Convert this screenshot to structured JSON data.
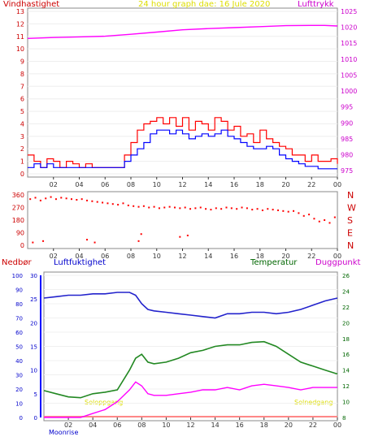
{
  "header": {
    "left_label": "Vindhastighet",
    "center_label": "24 hour graph dae:  16 Jule 2020",
    "right_label": "Lufttrykk"
  },
  "colors": {
    "wind": "#ff0000",
    "wind_avg": "#0000ff",
    "pressure": "#ff00ff",
    "direction": "#ff0000",
    "humidity": "#2222cc",
    "temperature": "#228822",
    "dewpoint": "#ff00ff",
    "rain": "#0000ff",
    "sun": "#ffff00",
    "axis_left": "#cc0000",
    "axis_right_top": "#cc00cc",
    "axis_green": "#006600"
  },
  "chart_data": [
    {
      "type": "line",
      "name": "wind-pressure-chart",
      "title": "24 hour graph dae:  16 Jule 2020",
      "left_axis_label": "Vindhastighet",
      "right_axis_label": "Lufttrykk",
      "x_ticks": [
        "02",
        "04",
        "06",
        "08",
        "10",
        "12",
        "14",
        "16",
        "18",
        "20",
        "22",
        "00"
      ],
      "left_ticks": [
        "0",
        "1",
        "2",
        "3",
        "4",
        "5",
        "6",
        "7",
        "8",
        "9",
        "10",
        "11",
        "12",
        "13"
      ],
      "right_ticks": [
        "975",
        "980",
        "985",
        "990",
        "995",
        "1000",
        "1005",
        "1010",
        "1015",
        "1020",
        "1025"
      ],
      "ylim_left": [
        0,
        13
      ],
      "ylim_right": [
        974,
        1025
      ],
      "series": [
        {
          "axis": "left",
          "x": [
            0.0,
            0.5,
            1.0,
            1.5,
            2.0,
            2.5,
            3.0,
            3.5,
            4.0,
            4.5,
            5.0,
            5.5,
            6.0,
            6.5,
            7.0,
            7.5,
            8.0,
            8.5,
            9.0,
            9.5,
            10.0,
            10.5,
            11.0,
            11.5,
            12.0,
            12.5,
            13.0,
            13.5,
            14.0,
            14.5,
            15.0,
            15.5,
            16.0,
            16.5,
            17.0,
            17.5,
            18.0,
            18.5,
            19.0,
            19.5,
            20.0,
            20.5,
            21.0,
            21.5,
            22.0,
            22.5,
            23.0,
            23.5,
            24.0
          ],
          "values": [
            0.5,
            0.8,
            0.5,
            0.8,
            0.5,
            0.5,
            0.5,
            0.5,
            0.5,
            0.5,
            0.5,
            0.5,
            0.5,
            0.5,
            0.5,
            1.0,
            1.5,
            2.0,
            2.5,
            3.2,
            3.5,
            3.5,
            3.2,
            3.5,
            3.2,
            2.8,
            3.0,
            3.2,
            3.0,
            3.2,
            3.5,
            3.0,
            2.8,
            2.5,
            2.2,
            2.0,
            2.0,
            2.2,
            2.0,
            1.5,
            1.2,
            1.0,
            0.8,
            0.6,
            0.6,
            0.4,
            0.4,
            0.4,
            0.4
          ]
        },
        {
          "axis": "left",
          "x": [
            0.0,
            0.5,
            1.0,
            1.5,
            2.0,
            2.5,
            3.0,
            3.5,
            4.0,
            4.5,
            5.0,
            5.5,
            6.0,
            6.5,
            7.0,
            7.5,
            8.0,
            8.5,
            9.0,
            9.5,
            10.0,
            10.5,
            11.0,
            11.5,
            12.0,
            12.5,
            13.0,
            13.5,
            14.0,
            14.5,
            15.0,
            15.5,
            16.0,
            16.5,
            17.0,
            17.5,
            18.0,
            18.5,
            19.0,
            19.5,
            20.0,
            20.5,
            21.0,
            21.5,
            22.0,
            22.5,
            23.0,
            23.5,
            24.0
          ],
          "values": [
            1.5,
            1.0,
            0.5,
            1.2,
            1.0,
            0.5,
            1.0,
            0.8,
            0.5,
            0.8,
            0.5,
            0.5,
            0.5,
            0.5,
            0.5,
            1.5,
            2.5,
            3.5,
            4.0,
            4.2,
            4.5,
            4.0,
            4.5,
            3.8,
            4.5,
            3.5,
            4.2,
            4.0,
            3.5,
            4.5,
            4.2,
            3.5,
            3.8,
            3.0,
            3.2,
            2.5,
            3.5,
            2.8,
            2.5,
            2.2,
            2.0,
            1.5,
            1.5,
            1.0,
            1.5,
            1.0,
            1.0,
            1.2,
            0.8
          ]
        },
        {
          "axis": "right",
          "x": [
            0,
            2,
            4,
            6,
            8,
            10,
            12,
            14,
            16,
            18,
            20,
            22,
            23,
            24
          ],
          "values": [
            1016.5,
            1016.8,
            1017.0,
            1017.2,
            1017.8,
            1018.5,
            1019.2,
            1019.6,
            1019.9,
            1020.2,
            1020.5,
            1020.6,
            1020.6,
            1020.4
          ]
        }
      ]
    },
    {
      "type": "scatter",
      "name": "wind-direction-chart",
      "y_ticks_left": [
        "0",
        "90",
        "180",
        "270",
        "360"
      ],
      "y_ticks_right": [
        "N",
        "E",
        "S",
        "W",
        "N"
      ],
      "ylim": [
        0,
        360
      ],
      "x_ticks": [
        "02",
        "04",
        "06",
        "08",
        "10",
        "12",
        "14",
        "16",
        "18",
        "20",
        "22",
        "00"
      ],
      "series": [
        {
          "x": [
            0.2,
            0.6,
            1.0,
            1.4,
            1.8,
            2.2,
            2.6,
            3.0,
            3.4,
            3.8,
            4.2,
            4.6,
            5.0,
            5.4,
            5.8,
            6.2,
            6.6,
            7.0,
            7.4,
            7.8,
            8.2,
            8.6,
            9.0,
            9.4,
            9.8,
            10.2,
            10.6,
            11.0,
            11.4,
            11.8,
            12.2,
            12.6,
            13.0,
            13.4,
            13.8,
            14.2,
            14.6,
            15.0,
            15.4,
            15.8,
            16.2,
            16.6,
            17.0,
            17.4,
            17.8,
            18.2,
            18.6,
            19.0,
            19.4,
            19.8,
            20.2,
            20.6,
            21.0,
            21.4,
            21.8,
            22.2,
            22.6,
            23.0,
            23.4,
            23.8,
            0.4,
            1.2,
            4.6,
            5.2,
            8.6,
            8.8,
            11.8,
            12.4
          ],
          "values": [
            330,
            340,
            320,
            335,
            345,
            330,
            340,
            335,
            330,
            325,
            330,
            320,
            315,
            310,
            305,
            300,
            295,
            290,
            300,
            285,
            280,
            275,
            280,
            270,
            275,
            265,
            270,
            275,
            270,
            265,
            270,
            260,
            265,
            270,
            260,
            255,
            265,
            260,
            270,
            265,
            260,
            270,
            265,
            255,
            260,
            250,
            260,
            255,
            250,
            245,
            240,
            245,
            230,
            210,
            220,
            190,
            170,
            180,
            160,
            200,
            20,
            30,
            40,
            20,
            30,
            80,
            60,
            70
          ]
        }
      ]
    },
    {
      "type": "line",
      "name": "humidity-temperature-chart",
      "left_axis_label": "Nedbør",
      "left_axis2_label": "Luftfuktighet",
      "green_axis_label": "Temperatur",
      "right_axis_label": "Duggpunkt",
      "x_ticks": [
        "02",
        "04",
        "06",
        "08",
        "10",
        "12",
        "14",
        "16",
        "18",
        "20",
        "22",
        "00"
      ],
      "humidity_ticks": [
        "0",
        "10",
        "20",
        "30",
        "40",
        "50",
        "60",
        "70",
        "80",
        "90",
        "100"
      ],
      "rain_ticks": [
        "0",
        "5",
        "10",
        "15",
        "20",
        "25",
        "30"
      ],
      "temp_ticks": [
        "8",
        "10",
        "12",
        "14",
        "16",
        "18",
        "20",
        "22",
        "24",
        "26"
      ],
      "ylim_humidity": [
        0,
        100
      ],
      "ylim_rain": [
        0,
        30
      ],
      "ylim_temp": [
        8,
        26
      ],
      "annotations": [
        "Moonrise",
        "Soloppgang",
        "Solnedgang"
      ],
      "series": [
        {
          "name": "Luftfuktighet",
          "axis": "humidity",
          "x": [
            0,
            1,
            2,
            3,
            4,
            5,
            6,
            7,
            7.5,
            8,
            8.5,
            9,
            10,
            11,
            12,
            13,
            14,
            15,
            16,
            17,
            18,
            19,
            20,
            21,
            22,
            23,
            24
          ],
          "values": [
            84,
            85,
            86,
            86,
            87,
            87,
            88,
            88,
            86,
            80,
            76,
            75,
            74,
            73,
            72,
            71,
            70,
            73,
            73,
            74,
            74,
            73,
            74,
            76,
            79,
            82,
            84
          ]
        },
        {
          "name": "Temperatur",
          "axis": "temp",
          "x": [
            0,
            1,
            2,
            3,
            4,
            5,
            6,
            7,
            7.5,
            8,
            8.5,
            9,
            10,
            11,
            12,
            13,
            14,
            15,
            16,
            17,
            18,
            19,
            20,
            21,
            22,
            23,
            24
          ],
          "values": [
            11.4,
            11.0,
            10.6,
            10.5,
            11.0,
            11.2,
            11.5,
            14.0,
            15.5,
            16.0,
            15.0,
            14.8,
            15.0,
            15.5,
            16.2,
            16.5,
            17.0,
            17.2,
            17.2,
            17.5,
            17.6,
            17.0,
            16.0,
            15.0,
            14.5,
            14.0,
            13.5
          ]
        },
        {
          "name": "Duggpunkt",
          "axis": "temp",
          "x": [
            0,
            1,
            2,
            3,
            4,
            5,
            6,
            7,
            7.5,
            8,
            8.5,
            9,
            10,
            11,
            12,
            13,
            14,
            15,
            16,
            17,
            18,
            19,
            20,
            21,
            22,
            23,
            24
          ],
          "values": [
            8.0,
            8.0,
            8.0,
            8.0,
            8.5,
            9.0,
            10.0,
            11.5,
            12.5,
            12.0,
            11.0,
            10.8,
            10.8,
            11.0,
            11.2,
            11.5,
            11.5,
            11.8,
            11.5,
            12.0,
            12.2,
            12.0,
            11.8,
            11.5,
            11.8,
            11.8,
            11.8
          ]
        },
        {
          "name": "Nedbør",
          "axis": "rain",
          "x": [
            0,
            24
          ],
          "values": [
            0,
            0
          ]
        }
      ]
    }
  ]
}
